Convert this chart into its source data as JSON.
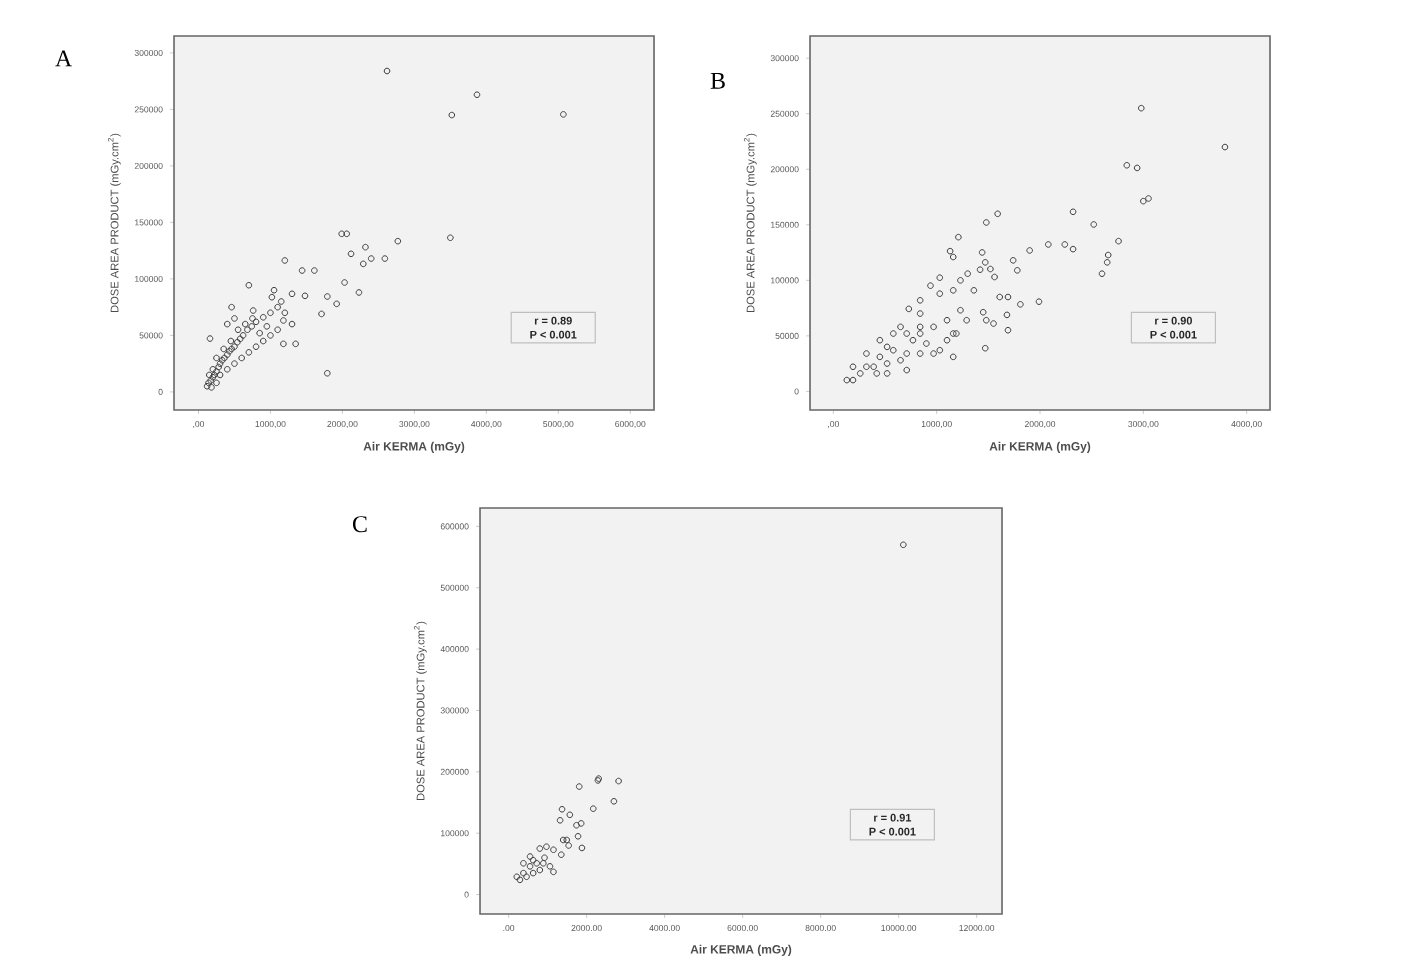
{
  "chart_data": [
    {
      "type": "scatter",
      "title": "A",
      "xlabel": "Air KERMA (mGy)",
      "ylabel": "DOSE AREA PRODUCT (mGy.cm$^{2}$)",
      "marker": "circle",
      "color": "#3c3c3c",
      "annotations": [
        "r = 0.89",
        "P < 0.001"
      ],
      "xlim": [
        -340,
        6330
      ],
      "ylim": [
        -16000,
        315000
      ],
      "xticks": [
        {
          "value": 0,
          "label": ",00"
        },
        {
          "value": 1000,
          "label": "1000,00"
        },
        {
          "value": 2000,
          "label": "2000,00"
        },
        {
          "value": 3000,
          "label": "3000,00"
        },
        {
          "value": 4000,
          "label": "4000,00"
        },
        {
          "value": 5000,
          "label": "5000,00"
        },
        {
          "value": 6000,
          "label": "6000,00"
        }
      ],
      "yticks": [
        0,
        50000,
        100000,
        150000,
        200000,
        250000,
        300000
      ],
      "x": [
        2620,
        3870,
        3520,
        5070,
        3500,
        2770,
        1990,
        2060,
        2320,
        2120,
        2400,
        2590,
        2290,
        2230,
        2030,
        1920,
        1790,
        1710,
        1790,
        1440,
        1610,
        1200,
        700,
        160,
        460,
        760,
        1020,
        1300,
        1480,
        1180,
        1350,
        1180,
        140,
        170,
        200,
        220,
        250,
        280,
        300,
        330,
        360,
        400,
        430,
        460,
        500,
        540,
        580,
        620,
        680,
        740,
        800,
        900,
        1000,
        1100,
        200,
        300,
        400,
        500,
        600,
        700,
        800,
        900,
        1000,
        1100,
        150,
        250,
        350,
        450,
        550,
        650,
        750,
        850,
        950,
        1200,
        1300,
        400,
        500,
        1050,
        1150,
        120,
        180,
        250
      ],
      "values": [
        284000,
        263000,
        245000,
        245600,
        136400,
        133400,
        139900,
        139900,
        128100,
        122200,
        118000,
        118000,
        113300,
        88000,
        96800,
        77900,
        84400,
        69000,
        16500,
        107400,
        107400,
        116300,
        94400,
        47200,
        75000,
        72000,
        83800,
        86800,
        85000,
        42500,
        42500,
        63200,
        8000,
        10000,
        13000,
        15000,
        18000,
        22000,
        25000,
        28000,
        30000,
        33000,
        36000,
        38000,
        40000,
        44000,
        47000,
        50000,
        55000,
        58000,
        62000,
        66000,
        70000,
        75000,
        20000,
        15000,
        20000,
        25000,
        30000,
        35000,
        40000,
        45000,
        50000,
        55000,
        15000,
        30000,
        38000,
        45000,
        55000,
        60000,
        65000,
        52000,
        58000,
        70000,
        60000,
        60000,
        65000,
        90000,
        80000,
        5000,
        4000,
        8000
      ]
    },
    {
      "type": "scatter",
      "title": "B",
      "xlabel": "Air KERMA (mGy)",
      "ylabel": "DOSE AREA PRODUCT (mGy.cm$^{2}$)",
      "marker": "circle",
      "color": "#3c3c3c",
      "annotations": [
        "r = 0.90",
        "P < 0.001"
      ],
      "xlim": [
        -226,
        4226
      ],
      "ylim": [
        -16700,
        320000
      ],
      "xticks": [
        {
          "value": 0,
          "label": ",00"
        },
        {
          "value": 1000,
          "label": "1000,00"
        },
        {
          "value": 2000,
          "label": "2000,00"
        },
        {
          "value": 3000,
          "label": "3000,00"
        },
        {
          "value": 4000,
          "label": "4000,00"
        }
      ],
      "yticks": [
        0,
        50000,
        100000,
        150000,
        200000,
        250000,
        300000
      ],
      "x": [
        2980,
        3790,
        2840,
        2940,
        3000,
        3050,
        2320,
        2520,
        2760,
        2650,
        2660,
        2600,
        2080,
        2240,
        2320,
        1900,
        1990,
        1810,
        1740,
        1780,
        1590,
        1480,
        1210,
        1130,
        1160,
        1440,
        1470,
        1420,
        1520,
        1560,
        1300,
        1230,
        1030,
        940,
        840,
        1030,
        1160,
        1360,
        1610,
        1690,
        1450,
        1480,
        1550,
        1680,
        1690,
        1470,
        1160,
        730,
        840,
        970,
        1100,
        1230,
        1290,
        1190,
        900,
        710,
        580,
        450,
        320,
        190,
        130,
        260,
        390,
        520,
        650,
        840,
        710,
        580,
        450,
        320,
        520,
        770,
        970,
        1030,
        840,
        650,
        520,
        420,
        710,
        190,
        840,
        1100,
        1160
      ],
      "values": [
        255000,
        220000,
        203600,
        201200,
        171300,
        173700,
        161700,
        150300,
        135300,
        116200,
        122800,
        106000,
        132300,
        132300,
        128100,
        126900,
        80800,
        78400,
        118000,
        109000,
        159900,
        152100,
        138900,
        126300,
        121000,
        125100,
        116200,
        109600,
        110200,
        103000,
        106000,
        100000,
        102400,
        95200,
        82000,
        88000,
        91000,
        91000,
        85000,
        85000,
        71300,
        64100,
        61100,
        68900,
        55100,
        38900,
        31100,
        74300,
        70100,
        58100,
        64100,
        73100,
        64100,
        52100,
        43100,
        52100,
        52100,
        46100,
        34100,
        22200,
        10200,
        16200,
        22200,
        25100,
        28100,
        34100,
        34100,
        37100,
        31100,
        22200,
        16200,
        46100,
        34100,
        37100,
        58100,
        58100,
        40100,
        16200,
        19200,
        10200,
        52100,
        46100,
        52100
      ]
    },
    {
      "type": "scatter",
      "title": "C",
      "xlabel": "Air KERMA (mGy)",
      "ylabel": "DOSE AREA PRODUCT (mGy.cm$^{2}$)",
      "marker": "circle",
      "color": "#3c3c3c",
      "annotations": [
        "r = 0.91",
        "P < 0.001"
      ],
      "xlim": [
        -733,
        12650
      ],
      "ylim": [
        -31600,
        630000
      ],
      "xticks": [
        {
          "value": 0,
          "label": ".00"
        },
        {
          "value": 2000,
          "label": "2000.00"
        },
        {
          "value": 4000,
          "label": "4000.00"
        },
        {
          "value": 6000,
          "label": "6000.00"
        },
        {
          "value": 8000,
          "label": "8000.00"
        },
        {
          "value": 10000,
          "label": "10000.00"
        },
        {
          "value": 12000,
          "label": "12000.00"
        }
      ],
      "yticks": [
        0,
        100000,
        200000,
        300000,
        400000,
        500000,
        600000
      ],
      "x": [
        10120,
        2820,
        2310,
        2290,
        1810,
        2700,
        2170,
        1370,
        1570,
        1320,
        1860,
        1740,
        1780,
        1490,
        1400,
        1540,
        1880,
        970,
        800,
        1150,
        1350,
        920,
        1060,
        1150,
        720,
        630,
        550,
        380,
        290,
        460,
        630,
        800,
        550,
        380,
        210,
        890
      ],
      "values": [
        570000,
        185000,
        189000,
        186000,
        176000,
        152000,
        140000,
        139000,
        130000,
        121000,
        116000,
        113000,
        95000,
        89000,
        89000,
        80000,
        76000,
        78000,
        75000,
        73000,
        65000,
        60000,
        46000,
        37000,
        51000,
        56000,
        46000,
        35000,
        24000,
        29000,
        35000,
        40000,
        62000,
        51000,
        29000,
        51000
      ]
    }
  ]
}
